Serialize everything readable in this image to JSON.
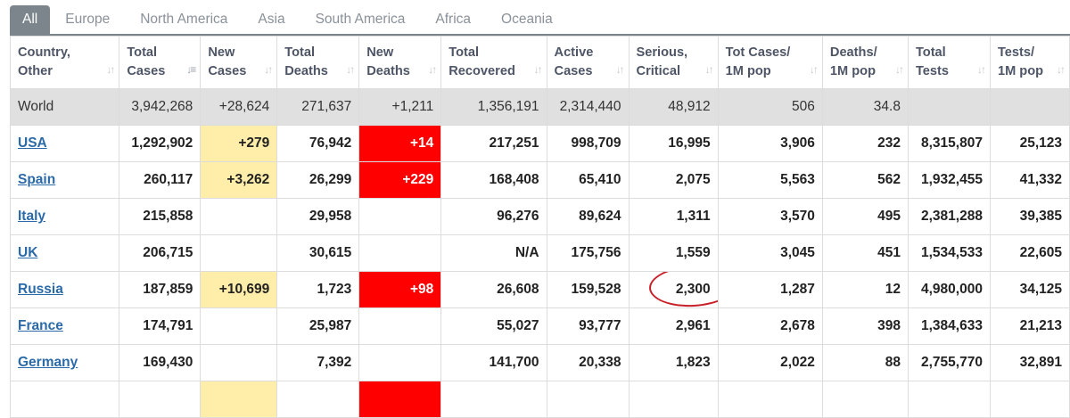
{
  "tabs": [
    "All",
    "Europe",
    "North America",
    "Asia",
    "South America",
    "Africa",
    "Oceania"
  ],
  "active_tab": "All",
  "columns": [
    [
      "Country,",
      "Other"
    ],
    [
      "Total",
      "Cases"
    ],
    [
      "New",
      "Cases"
    ],
    [
      "Total",
      "Deaths"
    ],
    [
      "New",
      "Deaths"
    ],
    [
      "Total",
      "Recovered"
    ],
    [
      "Active",
      "Cases"
    ],
    [
      "Serious,",
      "Critical"
    ],
    [
      "Tot Cases/",
      "1M pop"
    ],
    [
      "Deaths/",
      "1M pop"
    ],
    [
      "Total",
      "Tests"
    ],
    [
      "Tests/",
      "1M pop"
    ]
  ],
  "sort_column": "Total Cases",
  "highlight_colors": {
    "new_cases": "#ffeeaa",
    "new_deaths": "#ff0000",
    "annotation": "#c81f28"
  },
  "world": [
    "World",
    "3,942,268",
    "+28,624",
    "271,637",
    "+1,211",
    "1,356,191",
    "2,314,440",
    "48,912",
    "506",
    "34.8",
    "",
    ""
  ],
  "rows": [
    [
      "USA",
      "1,292,902",
      "+279",
      "76,942",
      "+14",
      "217,251",
      "998,709",
      "16,995",
      "3,906",
      "232",
      "8,315,807",
      "25,123"
    ],
    [
      "Spain",
      "260,117",
      "+3,262",
      "26,299",
      "+229",
      "168,408",
      "65,410",
      "2,075",
      "5,563",
      "562",
      "1,932,455",
      "41,332"
    ],
    [
      "Italy",
      "215,858",
      "",
      "29,958",
      "",
      "96,276",
      "89,624",
      "1,311",
      "3,570",
      "495",
      "2,381,288",
      "39,385"
    ],
    [
      "UK",
      "206,715",
      "",
      "30,615",
      "",
      "N/A",
      "175,756",
      "1,559",
      "3,045",
      "451",
      "1,534,533",
      "22,605"
    ],
    [
      "Russia",
      "187,859",
      "+10,699",
      "1,723",
      "+98",
      "26,608",
      "159,528",
      "2,300",
      "1,287",
      "12",
      "4,980,000",
      "34,125"
    ],
    [
      "France",
      "174,791",
      "",
      "25,987",
      "",
      "55,027",
      "93,777",
      "2,961",
      "2,678",
      "398",
      "1,384,633",
      "21,213"
    ],
    [
      "Germany",
      "169,430",
      "",
      "7,392",
      "",
      "141,700",
      "20,338",
      "1,823",
      "2,022",
      "88",
      "2,755,770",
      "32,891"
    ]
  ],
  "annotated_cell": "Russia Serious, Critical 2,300"
}
